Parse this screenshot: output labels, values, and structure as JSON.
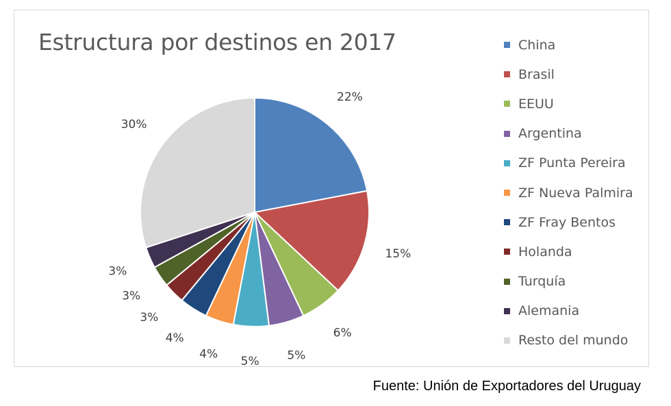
{
  "source": "Fuente: Unión de Exportadores del Uruguay",
  "chart_data": {
    "type": "pie",
    "title": "Estructura por destinos en 2017",
    "categories": [
      "China",
      "Brasil",
      "EEUU",
      "Argentina",
      "ZF Punta Pereira",
      "ZF Nueva Palmira",
      "ZF Fray Bentos",
      "Holanda",
      "Turquía",
      "Alemania",
      "Resto del mundo"
    ],
    "values": [
      22,
      15,
      6,
      5,
      5,
      4,
      4,
      3,
      3,
      3,
      30
    ],
    "labels": [
      "22%",
      "15%",
      "6%",
      "5%",
      "5%",
      "4%",
      "4%",
      "3%",
      "3%",
      "3%",
      "30%"
    ],
    "colors": [
      "#4f81bd",
      "#c0504d",
      "#9bbb59",
      "#8064a2",
      "#4bacc6",
      "#f79646",
      "#1f497d",
      "#7f2a28",
      "#4f6228",
      "#3f3151",
      "#d9d9d9"
    ],
    "legend": "right"
  }
}
